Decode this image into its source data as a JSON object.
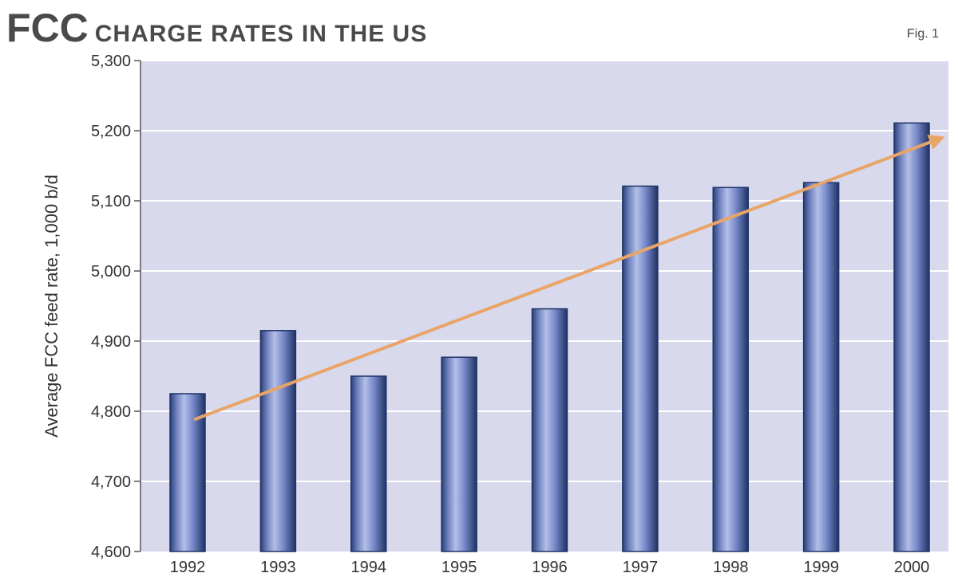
{
  "title": {
    "main": "FCC",
    "rest": "CHARGE RATES IN THE US"
  },
  "fig_label": "Fig. 1",
  "colors": {
    "panel": "#d9d9ed",
    "grid": "#ffffff",
    "bar_dark": "#1f3366",
    "bar_light": "#a9b6e3",
    "arrow": "#e8a567",
    "text": "#333333"
  },
  "chart_data": {
    "type": "bar",
    "title": "FCC CHARGE RATES IN THE US",
    "xlabel": "",
    "ylabel": "Average FCC feed rate, 1,000 b/d",
    "categories": [
      "1992",
      "1993",
      "1994",
      "1995",
      "1996",
      "1997",
      "1998",
      "1999",
      "2000"
    ],
    "values": [
      4825,
      4915,
      4850,
      4877,
      4946,
      5121,
      5119,
      5126,
      5211
    ],
    "ylim": [
      4600,
      5300
    ],
    "yticks": [
      4600,
      4700,
      4800,
      4900,
      5000,
      5100,
      5200,
      5300
    ],
    "ytick_labels": [
      "4,600",
      "4,700",
      "4,800",
      "4,900",
      "5,000",
      "5,100",
      "5,200",
      "5,300"
    ],
    "grid": true,
    "trend_arrow": {
      "start": {
        "x": "1992",
        "y": 4788
      },
      "end": {
        "x": "2000",
        "y": 5190
      }
    }
  }
}
